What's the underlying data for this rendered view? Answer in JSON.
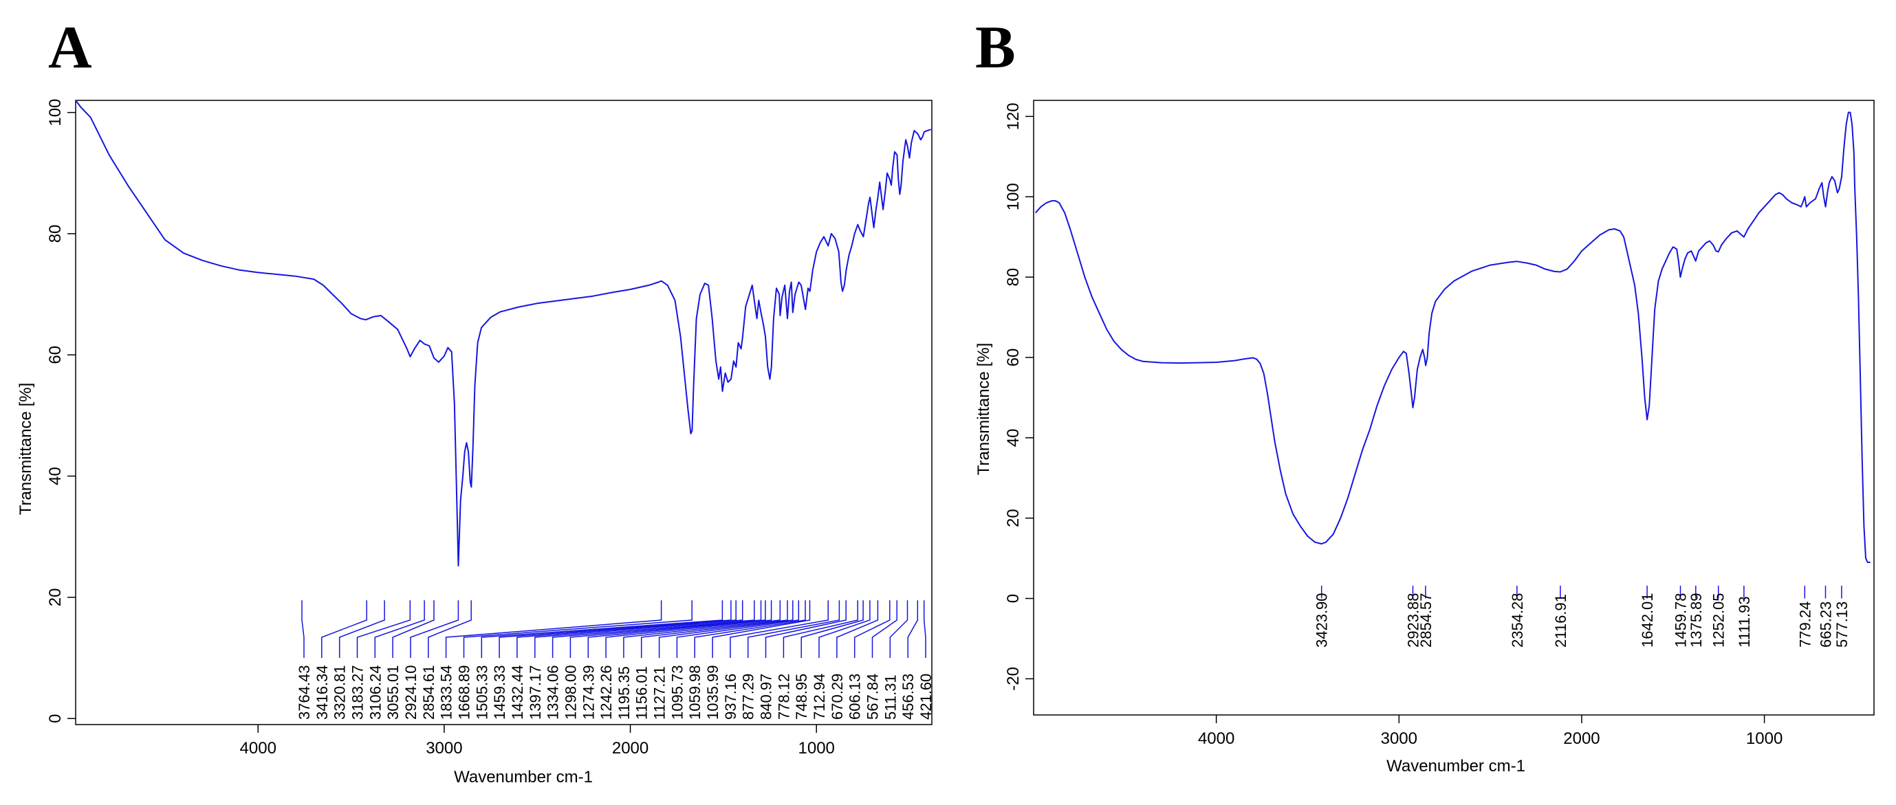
{
  "panels": {
    "a": {
      "label": "A"
    },
    "b": {
      "label": "B"
    }
  },
  "chart_data": [
    {
      "type": "line",
      "panel": "A",
      "xlabel": "Wavenumber cm-1",
      "ylabel": "Transmittance [%]",
      "xlim": [
        4980,
        380
      ],
      "ylim": [
        -1,
        102
      ],
      "x_reversed": true,
      "xticks": [
        4000,
        3000,
        2000,
        1000
      ],
      "yticks": [
        0,
        20,
        40,
        60,
        80,
        100
      ],
      "line_color": "#1515e0",
      "grid": false,
      "peak_marker_top": 19.5,
      "peak_marker_bottom": 16.8,
      "peaks": [
        3764.43,
        3416.34,
        3320.81,
        3183.27,
        3106.24,
        3055.01,
        2924.1,
        2854.61,
        1833.54,
        1668.89,
        1505.33,
        1459.33,
        1432.44,
        1397.17,
        1334.06,
        1298.0,
        1274.39,
        1242.26,
        1195.35,
        1156.01,
        1127.21,
        1095.73,
        1059.98,
        1035.99,
        937.16,
        877.29,
        840.97,
        778.12,
        748.95,
        712.94,
        670.29,
        606.13,
        567.84,
        511.31,
        456.53,
        421.6
      ],
      "peak_labels": [
        "3764.43",
        "3416.34",
        "3320.81",
        "3183.27",
        "3106.24",
        "3055.01",
        "2924.10",
        "2854.61",
        "1833.54",
        "1668.89",
        "1505.33",
        "1459.33",
        "1432.44",
        "1397.17",
        "1334.06",
        "1298.00",
        "1274.39",
        "1242.26",
        "1195.35",
        "1156.01",
        "1127.21",
        "1095.73",
        "1059.98",
        "1035.99",
        "937.16",
        "877.29",
        "840.97",
        "778.12",
        "748.95",
        "712.94",
        "670.29",
        "606.13",
        "567.84",
        "511.31",
        "456.53",
        "421.60"
      ],
      "spectrum": [
        [
          4980,
          102
        ],
        [
          4950,
          100.8
        ],
        [
          4900,
          99.2
        ],
        [
          4800,
          93
        ],
        [
          4700,
          88
        ],
        [
          4600,
          83.5
        ],
        [
          4500,
          79
        ],
        [
          4400,
          76.8
        ],
        [
          4300,
          75.6
        ],
        [
          4200,
          74.7
        ],
        [
          4100,
          74
        ],
        [
          4000,
          73.6
        ],
        [
          3900,
          73.3
        ],
        [
          3800,
          73
        ],
        [
          3700,
          72.5
        ],
        [
          3650,
          71.5
        ],
        [
          3600,
          70
        ],
        [
          3550,
          68.5
        ],
        [
          3500,
          66.8
        ],
        [
          3450,
          66
        ],
        [
          3420,
          65.8
        ],
        [
          3380,
          66.3
        ],
        [
          3340,
          66.5
        ],
        [
          3300,
          65.5
        ],
        [
          3250,
          64.2
        ],
        [
          3200,
          61
        ],
        [
          3183,
          59.7
        ],
        [
          3160,
          61
        ],
        [
          3130,
          62.4
        ],
        [
          3106,
          61.8
        ],
        [
          3080,
          61.5
        ],
        [
          3055,
          59.5
        ],
        [
          3030,
          58.8
        ],
        [
          3000,
          59.8
        ],
        [
          2980,
          61.2
        ],
        [
          2960,
          60.5
        ],
        [
          2945,
          52
        ],
        [
          2935,
          39.5
        ],
        [
          2924,
          25.2
        ],
        [
          2912,
          36
        ],
        [
          2900,
          40
        ],
        [
          2890,
          44
        ],
        [
          2880,
          45.5
        ],
        [
          2870,
          44
        ],
        [
          2860,
          39
        ],
        [
          2854,
          38.2
        ],
        [
          2845,
          45
        ],
        [
          2835,
          55
        ],
        [
          2820,
          62
        ],
        [
          2800,
          64.5
        ],
        [
          2750,
          66.2
        ],
        [
          2700,
          67.1
        ],
        [
          2600,
          67.9
        ],
        [
          2500,
          68.5
        ],
        [
          2400,
          68.9
        ],
        [
          2300,
          69.3
        ],
        [
          2200,
          69.7
        ],
        [
          2100,
          70.3
        ],
        [
          2000,
          70.8
        ],
        [
          1900,
          71.5
        ],
        [
          1850,
          72
        ],
        [
          1833,
          72.2
        ],
        [
          1800,
          71.5
        ],
        [
          1760,
          69
        ],
        [
          1730,
          63
        ],
        [
          1710,
          57
        ],
        [
          1690,
          51
        ],
        [
          1675,
          47
        ],
        [
          1668,
          47.5
        ],
        [
          1660,
          55
        ],
        [
          1645,
          66
        ],
        [
          1625,
          70
        ],
        [
          1600,
          71.8
        ],
        [
          1580,
          71.5
        ],
        [
          1560,
          66
        ],
        [
          1540,
          59
        ],
        [
          1525,
          56
        ],
        [
          1515,
          58
        ],
        [
          1505,
          54
        ],
        [
          1490,
          57
        ],
        [
          1475,
          55.5
        ],
        [
          1459,
          56
        ],
        [
          1445,
          59
        ],
        [
          1432,
          58
        ],
        [
          1420,
          62
        ],
        [
          1405,
          61
        ],
        [
          1397,
          62.8
        ],
        [
          1380,
          68
        ],
        [
          1360,
          70
        ],
        [
          1345,
          71.5
        ],
        [
          1334,
          69
        ],
        [
          1320,
          66
        ],
        [
          1310,
          69
        ],
        [
          1298,
          67
        ],
        [
          1285,
          65
        ],
        [
          1274,
          63
        ],
        [
          1262,
          58
        ],
        [
          1250,
          56
        ],
        [
          1242,
          58
        ],
        [
          1230,
          66
        ],
        [
          1215,
          71
        ],
        [
          1200,
          70
        ],
        [
          1195,
          66.5
        ],
        [
          1185,
          69.5
        ],
        [
          1170,
          71.5
        ],
        [
          1156,
          66
        ],
        [
          1145,
          70.5
        ],
        [
          1135,
          72
        ],
        [
          1127,
          67
        ],
        [
          1115,
          70
        ],
        [
          1095,
          72
        ],
        [
          1082,
          71.5
        ],
        [
          1059,
          67.5
        ],
        [
          1045,
          71
        ],
        [
          1035,
          70.5
        ],
        [
          1020,
          74
        ],
        [
          1000,
          77
        ],
        [
          980,
          78.5
        ],
        [
          960,
          79.5
        ],
        [
          937,
          78
        ],
        [
          920,
          80
        ],
        [
          900,
          79.2
        ],
        [
          880,
          77
        ],
        [
          868,
          72
        ],
        [
          860,
          70.5
        ],
        [
          850,
          71.5
        ],
        [
          840,
          74
        ],
        [
          825,
          76.5
        ],
        [
          810,
          78
        ],
        [
          795,
          80
        ],
        [
          778,
          81.5
        ],
        [
          765,
          80.5
        ],
        [
          748,
          79.5
        ],
        [
          735,
          82
        ],
        [
          720,
          85
        ],
        [
          712,
          86
        ],
        [
          700,
          83
        ],
        [
          692,
          81
        ],
        [
          680,
          84
        ],
        [
          670,
          86
        ],
        [
          660,
          88.5
        ],
        [
          650,
          86
        ],
        [
          642,
          84
        ],
        [
          630,
          87
        ],
        [
          620,
          90
        ],
        [
          606,
          89
        ],
        [
          598,
          88
        ],
        [
          590,
          91
        ],
        [
          580,
          93.5
        ],
        [
          567,
          93
        ],
        [
          560,
          89
        ],
        [
          552,
          86.5
        ],
        [
          545,
          88
        ],
        [
          535,
          92
        ],
        [
          520,
          95.5
        ],
        [
          511,
          94.5
        ],
        [
          500,
          92.5
        ],
        [
          490,
          95
        ],
        [
          475,
          97
        ],
        [
          456,
          96.5
        ],
        [
          440,
          95.5
        ],
        [
          430,
          96
        ],
        [
          421,
          96.8
        ],
        [
          405,
          97
        ],
        [
          385,
          97.2
        ]
      ]
    },
    {
      "type": "line",
      "panel": "B",
      "xlabel": "Wavenumber cm-1",
      "ylabel": "Transmittance [%]",
      "xlim": [
        5000,
        400
      ],
      "ylim": [
        -29,
        124
      ],
      "x_reversed": true,
      "xticks": [
        4000,
        3000,
        2000,
        1000
      ],
      "yticks": [
        -20,
        0,
        20,
        40,
        60,
        80,
        100,
        120
      ],
      "line_color": "#1515e0",
      "grid": false,
      "peak_marker_top": 0,
      "peak_marker_bottom": -12,
      "peaks": [
        3423.9,
        2923.88,
        2854.57,
        2354.28,
        2116.91,
        1642.01,
        1459.78,
        1375.89,
        1252.05,
        1111.93,
        779.24,
        665.23,
        577.13
      ],
      "peak_labels": [
        "3423.90",
        "2923.88",
        "2854.57",
        "2354.28",
        "2116.91",
        "1642.01",
        "1459.78",
        "1375.89",
        "1252.05",
        "1111.93",
        "779.24",
        "665.23",
        "577.13"
      ],
      "spectrum": [
        [
          4990,
          96
        ],
        [
          4960,
          97.5
        ],
        [
          4930,
          98.5
        ],
        [
          4900,
          99
        ],
        [
          4880,
          99
        ],
        [
          4860,
          98.5
        ],
        [
          4830,
          96
        ],
        [
          4800,
          92
        ],
        [
          4760,
          86
        ],
        [
          4720,
          80
        ],
        [
          4680,
          75
        ],
        [
          4640,
          71
        ],
        [
          4600,
          67
        ],
        [
          4560,
          64
        ],
        [
          4520,
          62
        ],
        [
          4480,
          60.5
        ],
        [
          4440,
          59.5
        ],
        [
          4400,
          59
        ],
        [
          4300,
          58.7
        ],
        [
          4200,
          58.6
        ],
        [
          4100,
          58.7
        ],
        [
          4000,
          58.8
        ],
        [
          3900,
          59.2
        ],
        [
          3850,
          59.6
        ],
        [
          3800,
          59.9
        ],
        [
          3780,
          59.6
        ],
        [
          3760,
          58.5
        ],
        [
          3740,
          56
        ],
        [
          3720,
          51
        ],
        [
          3700,
          45
        ],
        [
          3680,
          39
        ],
        [
          3650,
          32
        ],
        [
          3620,
          26
        ],
        [
          3580,
          21
        ],
        [
          3540,
          18
        ],
        [
          3500,
          15.5
        ],
        [
          3460,
          14
        ],
        [
          3424,
          13.6
        ],
        [
          3400,
          14
        ],
        [
          3360,
          16
        ],
        [
          3320,
          20
        ],
        [
          3280,
          25
        ],
        [
          3240,
          31
        ],
        [
          3200,
          37
        ],
        [
          3160,
          42
        ],
        [
          3120,
          48
        ],
        [
          3080,
          53
        ],
        [
          3040,
          57
        ],
        [
          3000,
          60
        ],
        [
          2975,
          61.5
        ],
        [
          2960,
          61
        ],
        [
          2945,
          56
        ],
        [
          2930,
          50
        ],
        [
          2924,
          47.5
        ],
        [
          2915,
          50
        ],
        [
          2900,
          57
        ],
        [
          2885,
          60
        ],
        [
          2870,
          62
        ],
        [
          2860,
          60
        ],
        [
          2854,
          58
        ],
        [
          2845,
          60
        ],
        [
          2835,
          66
        ],
        [
          2820,
          71
        ],
        [
          2800,
          74
        ],
        [
          2750,
          77
        ],
        [
          2700,
          79
        ],
        [
          2600,
          81.5
        ],
        [
          2500,
          83
        ],
        [
          2400,
          83.7
        ],
        [
          2354,
          83.9
        ],
        [
          2300,
          83.5
        ],
        [
          2250,
          83
        ],
        [
          2200,
          82
        ],
        [
          2150,
          81.4
        ],
        [
          2117,
          81.3
        ],
        [
          2080,
          82
        ],
        [
          2040,
          84
        ],
        [
          2000,
          86.5
        ],
        [
          1950,
          88.5
        ],
        [
          1900,
          90.5
        ],
        [
          1850,
          91.8
        ],
        [
          1820,
          92
        ],
        [
          1790,
          91.5
        ],
        [
          1770,
          90
        ],
        [
          1750,
          86
        ],
        [
          1730,
          82
        ],
        [
          1710,
          78
        ],
        [
          1690,
          71
        ],
        [
          1670,
          60
        ],
        [
          1655,
          50
        ],
        [
          1642,
          44.5
        ],
        [
          1630,
          48
        ],
        [
          1615,
          60
        ],
        [
          1600,
          72
        ],
        [
          1580,
          79
        ],
        [
          1560,
          82
        ],
        [
          1540,
          84
        ],
        [
          1520,
          86
        ],
        [
          1500,
          87.5
        ],
        [
          1480,
          87
        ],
        [
          1470,
          84
        ],
        [
          1460,
          80
        ],
        [
          1450,
          82
        ],
        [
          1435,
          84.5
        ],
        [
          1420,
          86
        ],
        [
          1400,
          86.5
        ],
        [
          1385,
          85
        ],
        [
          1376,
          84
        ],
        [
          1360,
          86.5
        ],
        [
          1340,
          87.5
        ],
        [
          1320,
          88.5
        ],
        [
          1300,
          89
        ],
        [
          1280,
          88
        ],
        [
          1265,
          86.5
        ],
        [
          1252,
          86.3
        ],
        [
          1235,
          88
        ],
        [
          1210,
          89.5
        ],
        [
          1180,
          91
        ],
        [
          1150,
          91.5
        ],
        [
          1125,
          90.5
        ],
        [
          1112,
          90
        ],
        [
          1090,
          92
        ],
        [
          1060,
          94
        ],
        [
          1030,
          96
        ],
        [
          1000,
          97.5
        ],
        [
          970,
          99
        ],
        [
          940,
          100.5
        ],
        [
          920,
          101
        ],
        [
          900,
          100.5
        ],
        [
          880,
          99.5
        ],
        [
          850,
          98.5
        ],
        [
          820,
          98
        ],
        [
          800,
          97.5
        ],
        [
          790,
          98.5
        ],
        [
          779,
          100
        ],
        [
          770,
          97.5
        ],
        [
          750,
          98.5
        ],
        [
          720,
          99.5
        ],
        [
          700,
          102
        ],
        [
          685,
          103.5
        ],
        [
          675,
          100
        ],
        [
          665,
          97.5
        ],
        [
          655,
          101
        ],
        [
          645,
          103.5
        ],
        [
          630,
          105
        ],
        [
          615,
          104
        ],
        [
          600,
          101
        ],
        [
          590,
          102
        ],
        [
          577,
          105
        ],
        [
          565,
          112
        ],
        [
          552,
          118
        ],
        [
          540,
          121
        ],
        [
          530,
          121
        ],
        [
          520,
          118
        ],
        [
          510,
          111
        ],
        [
          505,
          102
        ],
        [
          495,
          90
        ],
        [
          485,
          75
        ],
        [
          475,
          55
        ],
        [
          465,
          35
        ],
        [
          455,
          18
        ],
        [
          445,
          10
        ],
        [
          435,
          9
        ],
        [
          420,
          9
        ]
      ]
    }
  ]
}
